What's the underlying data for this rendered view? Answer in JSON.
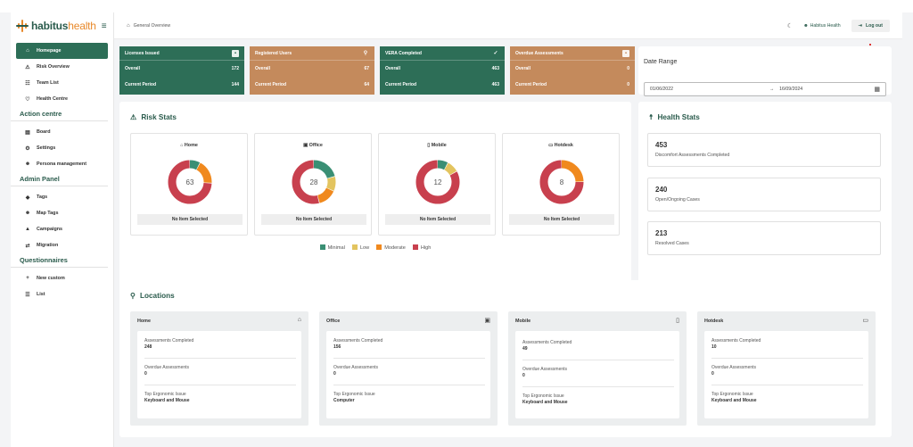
{
  "brand": {
    "name_bold": "habitus",
    "name_light": "health"
  },
  "sidebar": {
    "items": [
      {
        "label": "Homepage",
        "icon": "home-icon",
        "glyph": "⌂",
        "active": true
      },
      {
        "label": "Risk Overview",
        "icon": "warning-icon",
        "glyph": "⚠"
      },
      {
        "label": "Team List",
        "icon": "team-icon",
        "glyph": "☷"
      },
      {
        "label": "Health Centre",
        "icon": "heart-icon",
        "glyph": "♡"
      }
    ],
    "sections": [
      {
        "title": "Action centre",
        "items": [
          {
            "label": "Board",
            "icon": "board-icon",
            "glyph": "▤"
          },
          {
            "label": "Settings",
            "icon": "gear-icon",
            "glyph": "⚙"
          },
          {
            "label": "Persona management",
            "icon": "users-icon",
            "glyph": "☻"
          }
        ]
      },
      {
        "title": "Admin Panel",
        "items": [
          {
            "label": "Tags",
            "icon": "tag-icon",
            "glyph": "◆"
          },
          {
            "label": "Map Tags",
            "icon": "users-icon",
            "glyph": "☻"
          },
          {
            "label": "Campaigns",
            "icon": "megaphone-icon",
            "glyph": "▲"
          },
          {
            "label": "Migration",
            "icon": "arrows-icon",
            "glyph": "⇄"
          }
        ]
      },
      {
        "title": "Questionnaires",
        "items": [
          {
            "label": "New custom",
            "icon": "plus-icon",
            "glyph": "+"
          },
          {
            "label": "List",
            "icon": "list-icon",
            "glyph": "☰"
          }
        ]
      }
    ]
  },
  "header": {
    "breadcrumb": "General Overview",
    "user": "Habitus Health",
    "logout": "Log out"
  },
  "kpis": [
    {
      "title": "Licenses Issued",
      "overall_label": "Overall",
      "overall": "172",
      "period_label": "Current Period",
      "period": "144",
      "color": "#2d6e57"
    },
    {
      "title": "Registered Users",
      "overall_label": "Overall",
      "overall": "67",
      "period_label": "Current Period",
      "period": "64",
      "color": "#c48a5c"
    },
    {
      "title": "VERA Completed",
      "overall_label": "Overall",
      "overall": "463",
      "period_label": "Current Period",
      "period": "463",
      "color": "#2d6e57"
    },
    {
      "title": "Overdue Assessments",
      "overall_label": "Overall",
      "overall": "0",
      "period_label": "Current Period",
      "period": "0",
      "color": "#c48a5c"
    }
  ],
  "date_range": {
    "title": "Date Range",
    "start": "01/06/2022",
    "end": "16/09/2024"
  },
  "risk_stats": {
    "title": "Risk Stats",
    "no_item": "No Item Selected",
    "legend": [
      {
        "label": "Minimal",
        "color": "#3a8f74"
      },
      {
        "label": "Low",
        "color": "#e3c45f"
      },
      {
        "label": "Moderate",
        "color": "#f0891e"
      },
      {
        "label": "High",
        "color": "#c8404e"
      }
    ]
  },
  "chart_data": [
    {
      "type": "pie",
      "title": "Home",
      "center_label": "63",
      "categories": [
        "Minimal",
        "Low",
        "Moderate",
        "High"
      ],
      "values": [
        8,
        0,
        18,
        74
      ]
    },
    {
      "type": "pie",
      "title": "Office",
      "center_label": "28",
      "categories": [
        "Minimal",
        "Low",
        "Moderate",
        "High"
      ],
      "values": [
        21,
        11,
        14,
        54
      ]
    },
    {
      "type": "pie",
      "title": "Mobile",
      "center_label": "12",
      "categories": [
        "Minimal",
        "Low",
        "Moderate",
        "High"
      ],
      "values": [
        8,
        9,
        0,
        83
      ]
    },
    {
      "type": "pie",
      "title": "Hotdesk",
      "center_label": "8",
      "categories": [
        "Minimal",
        "Low",
        "Moderate",
        "High"
      ],
      "values": [
        0,
        0,
        25,
        75
      ]
    }
  ],
  "health_stats": {
    "title": "Health Stats",
    "items": [
      {
        "value": "453",
        "label": "Discomfort Assessments Completed"
      },
      {
        "value": "240",
        "label": "Open/Ongoing Cases"
      },
      {
        "value": "213",
        "label": "Resolved Cases"
      }
    ]
  },
  "locations": {
    "title": "Locations",
    "cols": [
      {
        "name": "Home",
        "icon": "house-icon",
        "glyph": "⌂",
        "completed_label": "Assessments Completed",
        "completed": "248",
        "overdue_label": "Overdue Assessments",
        "overdue": "0",
        "issue_label": "Top Ergonomic Issue",
        "issue": "Keyboard and Mouse"
      },
      {
        "name": "Office",
        "icon": "briefcase-icon",
        "glyph": "▣",
        "completed_label": "Assessments Completed",
        "completed": "156",
        "overdue_label": "Overdue Assessments",
        "overdue": "0",
        "issue_label": "Top Ergonomic Issue",
        "issue": "Computer"
      },
      {
        "name": "Mobile",
        "icon": "phone-icon",
        "glyph": "▯",
        "completed_label": "Assessments Completed",
        "completed": "49",
        "overdue_label": "Overdue Assessments",
        "overdue": "0",
        "issue_label": "Top Ergonomic Issue",
        "issue": "Keyboard and Mouse"
      },
      {
        "name": "Hotdesk",
        "icon": "monitor-icon",
        "glyph": "▭",
        "completed_label": "Assessments Completed",
        "completed": "10",
        "overdue_label": "Overdue Assessments",
        "overdue": "0",
        "issue_label": "Top Ergonomic Issue",
        "issue": "Keyboard and Mouse"
      }
    ]
  }
}
